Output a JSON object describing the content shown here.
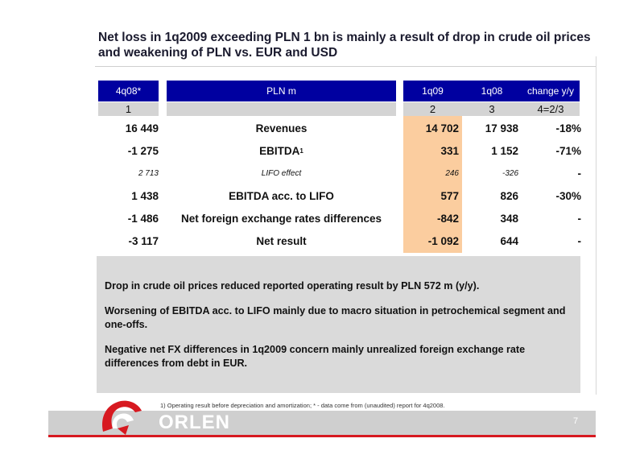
{
  "title": "Net loss in 1q2009 exceeding PLN 1 bn is mainly a result of drop in crude oil prices and weakening of PLN vs. EUR and USD",
  "table": {
    "headers": {
      "prev": "4q08*",
      "label": "PLN m",
      "q09": "1q09",
      "q08": "1q08",
      "change": "change y/y"
    },
    "index": {
      "prev": "1",
      "q09": "2",
      "q08": "3",
      "change": "4=2/3"
    },
    "rows": [
      {
        "prev": "16 449",
        "label": "Revenues",
        "q09": "14 702",
        "q08": "17 938",
        "change": "-18%"
      },
      {
        "prev": "-1 275",
        "label": "EBITDA",
        "label_sup": "1",
        "q09": "331",
        "q08": "1 152",
        "change": "-71%"
      },
      {
        "prev": "2 713",
        "label": "LIFO effect",
        "q09": "246",
        "q08": "-326",
        "change": "-"
      },
      {
        "prev": "1 438",
        "label": "EBITDA acc. to LIFO",
        "q09": "577",
        "q08": "826",
        "change": "-30%"
      },
      {
        "prev": "-1 486",
        "label": "Net foreign exchange rates differences",
        "q09": "-842",
        "q08": "348",
        "change": "-"
      },
      {
        "prev": "-3 117",
        "label": "Net result",
        "q09": "-1 092",
        "q08": "644",
        "change": "-"
      }
    ]
  },
  "comments": [
    "Drop in crude oil prices reduced reported operating result by PLN 572 m (y/y).",
    "Worsening of EBITDA acc. to LIFO mainly due to macro situation in petrochemical segment and one-offs.",
    "Negative net FX differences in 1q2009 concern mainly unrealized foreign exchange rate differences from debt in EUR."
  ],
  "footnote": "1) Operating result before depreciation and amortization; * - data come from (unaudited) report for 4q2008.",
  "brand": "ORLEN",
  "page_number": "7",
  "colors": {
    "header_blue": "#0000a0",
    "highlight": "#fbcd9f",
    "brand_red": "#d71920"
  }
}
